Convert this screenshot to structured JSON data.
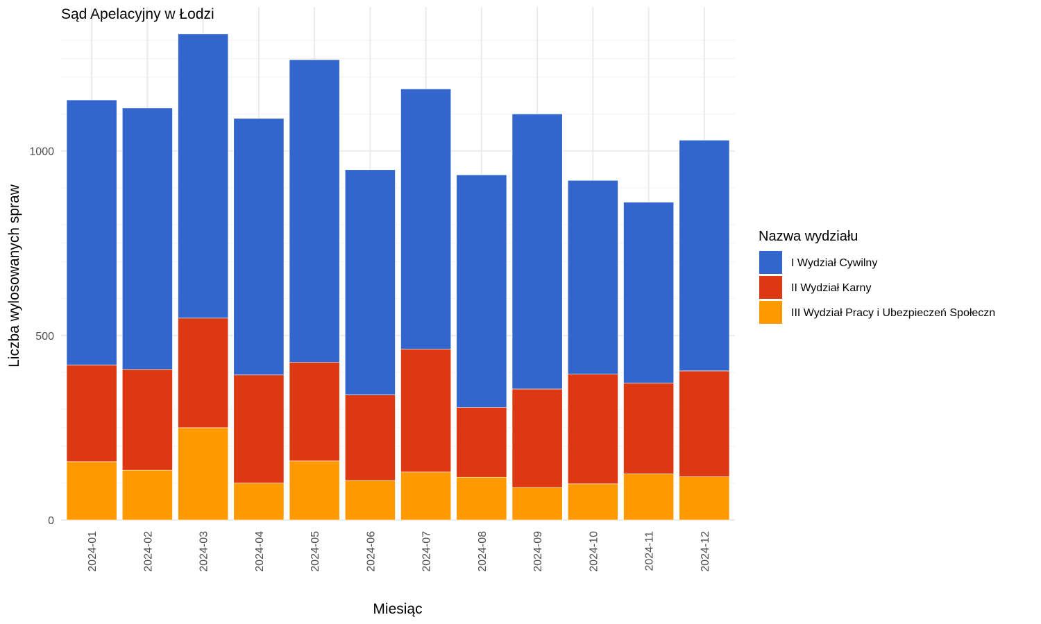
{
  "chart_data": {
    "type": "bar",
    "stacked": true,
    "title": "Sąd Apelacyjny w Łodzi",
    "xlabel": "Miesiąc",
    "ylabel": "Liczba wylosowanych spraw",
    "ylim": [
      0,
      1390
    ],
    "yticks": [
      0,
      500,
      1000
    ],
    "ytick_labels": [
      "0",
      "500",
      "1000"
    ],
    "grid": true,
    "legend_title": "Nazwa wydziału",
    "legend_position": "right",
    "categories": [
      "2024-01",
      "2024-02",
      "2024-03",
      "2024-04",
      "2024-05",
      "2024-06",
      "2024-07",
      "2024-08",
      "2024-09",
      "2024-10",
      "2024-11",
      "2024-12"
    ],
    "series": [
      {
        "name": "I Wydział Cywilny",
        "color": "#3366CC",
        "values": [
          718,
          708,
          770,
          695,
          820,
          610,
          705,
          630,
          745,
          525,
          490,
          625
        ]
      },
      {
        "name": "II Wydział Karny",
        "color": "#DC3912",
        "values": [
          262,
          273,
          297,
          293,
          267,
          232,
          333,
          189,
          267,
          297,
          246,
          287
        ]
      },
      {
        "name": "III Wydział Pracy i Ubezpieczeń Społeczn",
        "color": "#FF9900",
        "values": [
          158,
          135,
          250,
          100,
          160,
          107,
          130,
          116,
          88,
          98,
          125,
          117
        ]
      }
    ]
  }
}
